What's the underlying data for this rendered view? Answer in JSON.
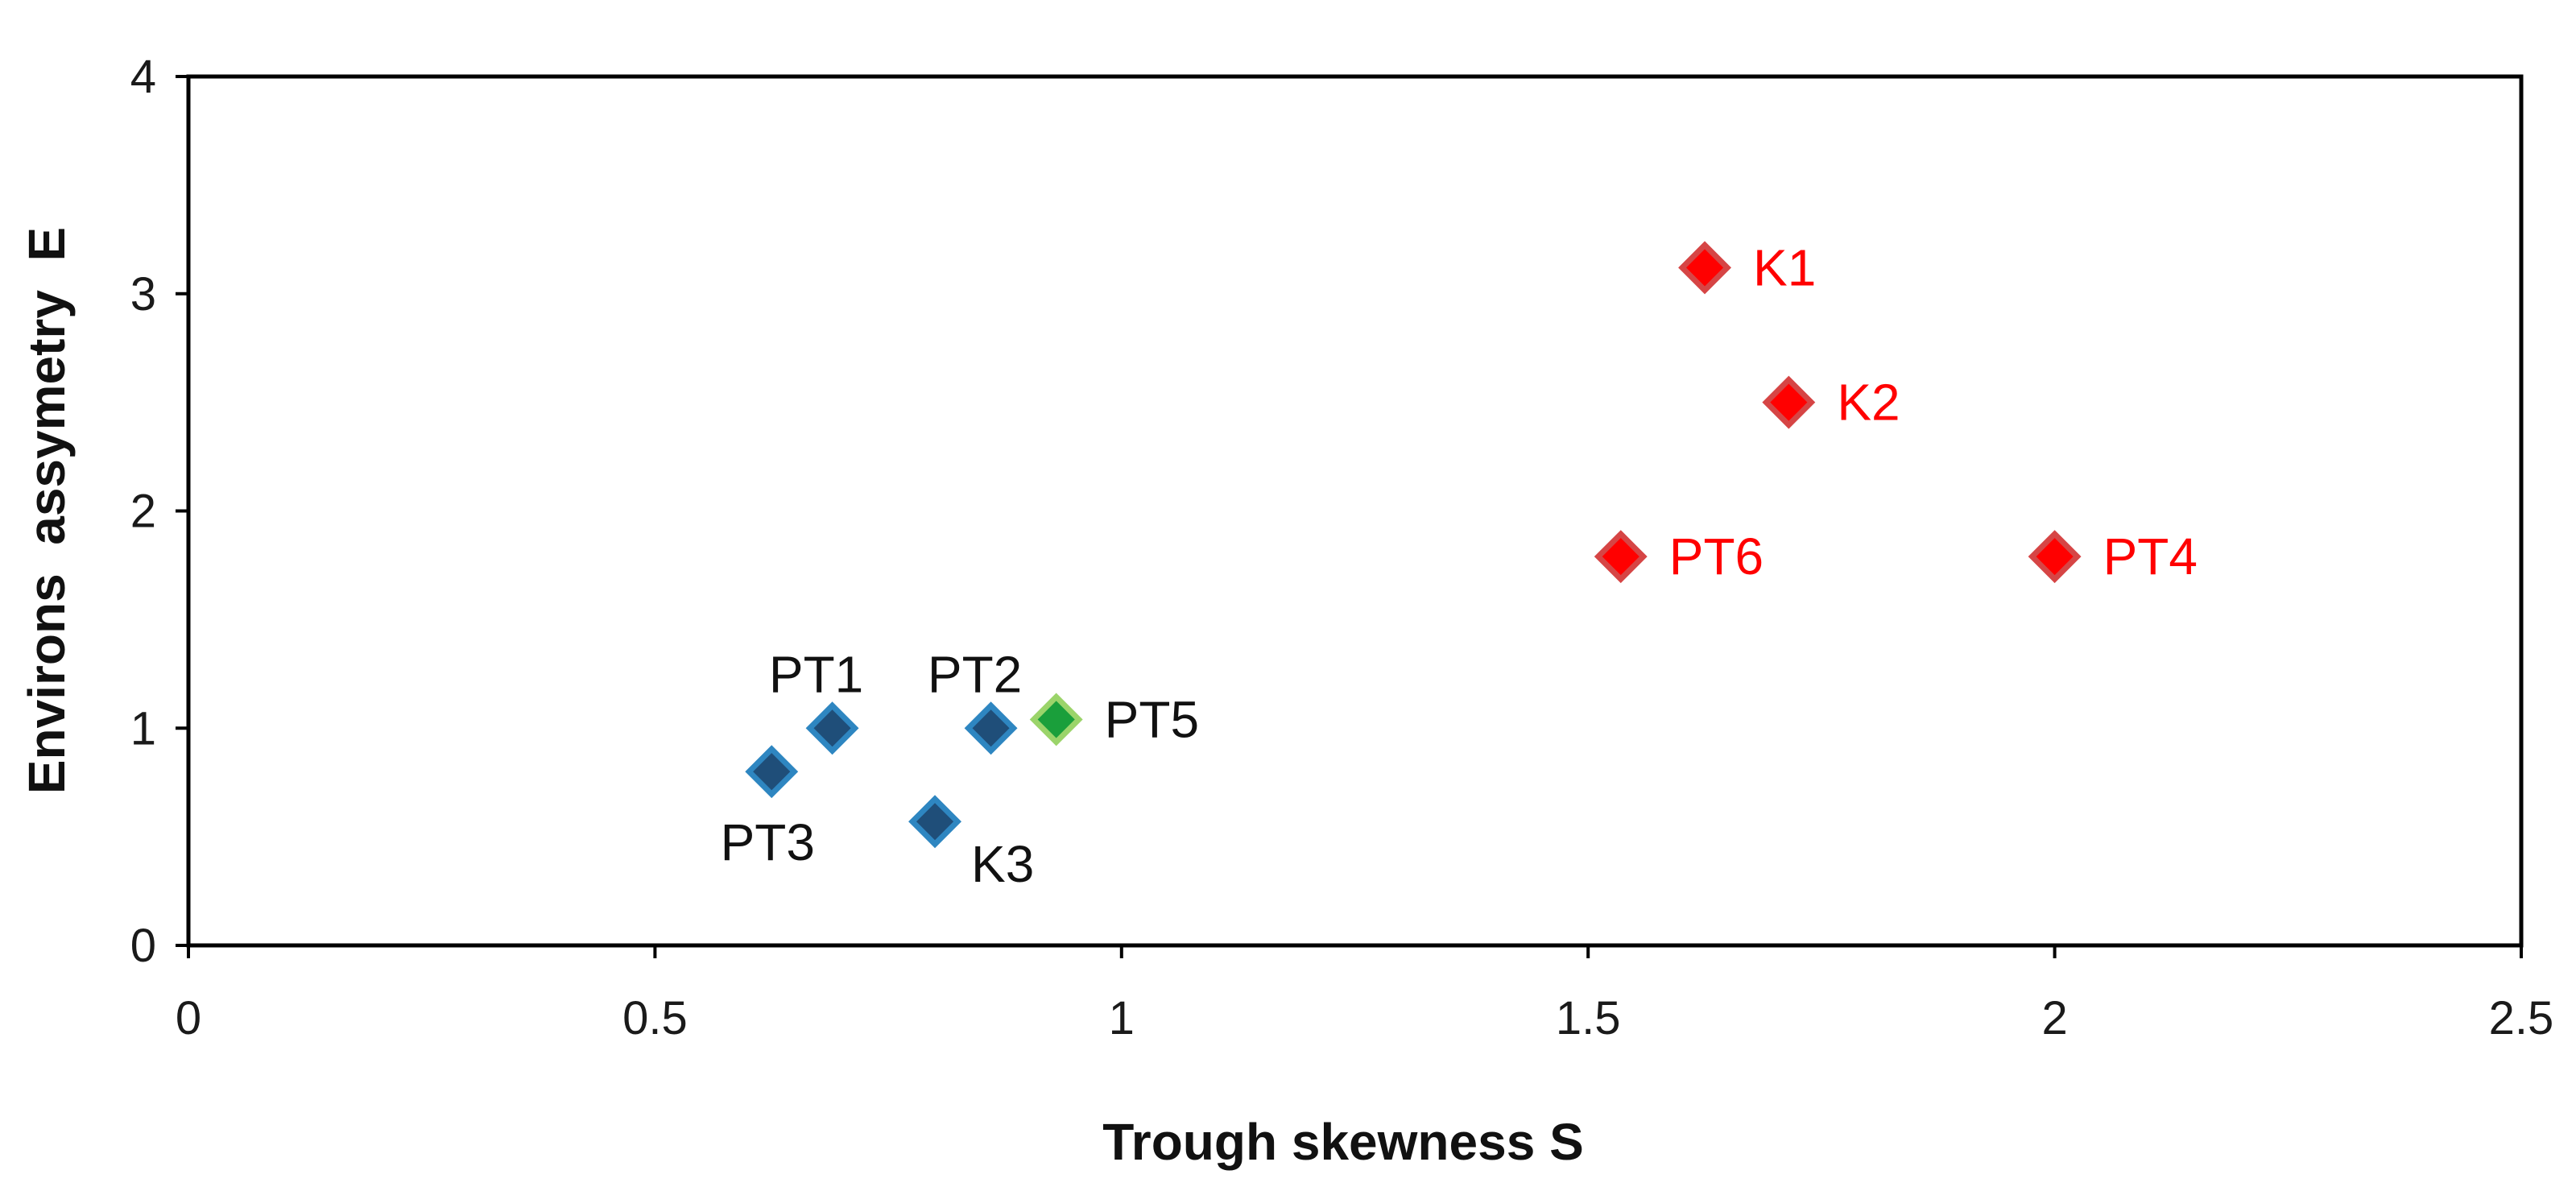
{
  "chart_data": {
    "type": "scatter",
    "title": "",
    "xlabel": "Trough skewness S",
    "ylabel": "Environs  assymetry  E",
    "xlim": [
      0,
      2.5
    ],
    "ylim": [
      0,
      4
    ],
    "xticks": [
      0,
      0.5,
      1,
      1.5,
      2,
      2.5
    ],
    "xtick_labels": [
      "0",
      "0.5",
      "1",
      "1.5",
      "2",
      "2.5"
    ],
    "yticks": [
      0,
      1,
      2,
      3,
      4
    ],
    "ytick_labels": [
      "0",
      "1",
      "2",
      "3",
      "4"
    ],
    "grid": false,
    "legend": "none",
    "marker": "diamond",
    "points": [
      {
        "label": "PT1",
        "x": 0.69,
        "y": 1.0,
        "fill": "#1f4e79",
        "stroke": "#2e86c1",
        "label_color": "#111111",
        "label_pos": "above"
      },
      {
        "label": "PT2",
        "x": 0.86,
        "y": 1.0,
        "fill": "#1f4e79",
        "stroke": "#2e86c1",
        "label_color": "#111111",
        "label_pos": "above"
      },
      {
        "label": "PT3",
        "x": 0.625,
        "y": 0.8,
        "fill": "#1f4e79",
        "stroke": "#2e86c1",
        "label_color": "#111111",
        "label_pos": "below"
      },
      {
        "label": "K3",
        "x": 0.8,
        "y": 0.57,
        "fill": "#1f4e79",
        "stroke": "#2e86c1",
        "label_color": "#111111",
        "label_pos": "below-right"
      },
      {
        "label": "PT5",
        "x": 0.93,
        "y": 1.04,
        "fill": "#1a9f3b",
        "stroke": "#9bd46a",
        "label_color": "#111111",
        "label_pos": "right"
      },
      {
        "label": "K1",
        "x": 1.625,
        "y": 3.12,
        "fill": "#ff0000",
        "stroke": "#d64545",
        "label_color": "#ff0000",
        "label_pos": "right"
      },
      {
        "label": "K2",
        "x": 1.715,
        "y": 2.5,
        "fill": "#ff0000",
        "stroke": "#d64545",
        "label_color": "#ff0000",
        "label_pos": "right"
      },
      {
        "label": "PT6",
        "x": 1.535,
        "y": 1.79,
        "fill": "#ff0000",
        "stroke": "#d64545",
        "label_color": "#ff0000",
        "label_pos": "right"
      },
      {
        "label": "PT4",
        "x": 2.0,
        "y": 1.79,
        "fill": "#ff0000",
        "stroke": "#d64545",
        "label_color": "#ff0000",
        "label_pos": "right"
      }
    ]
  }
}
